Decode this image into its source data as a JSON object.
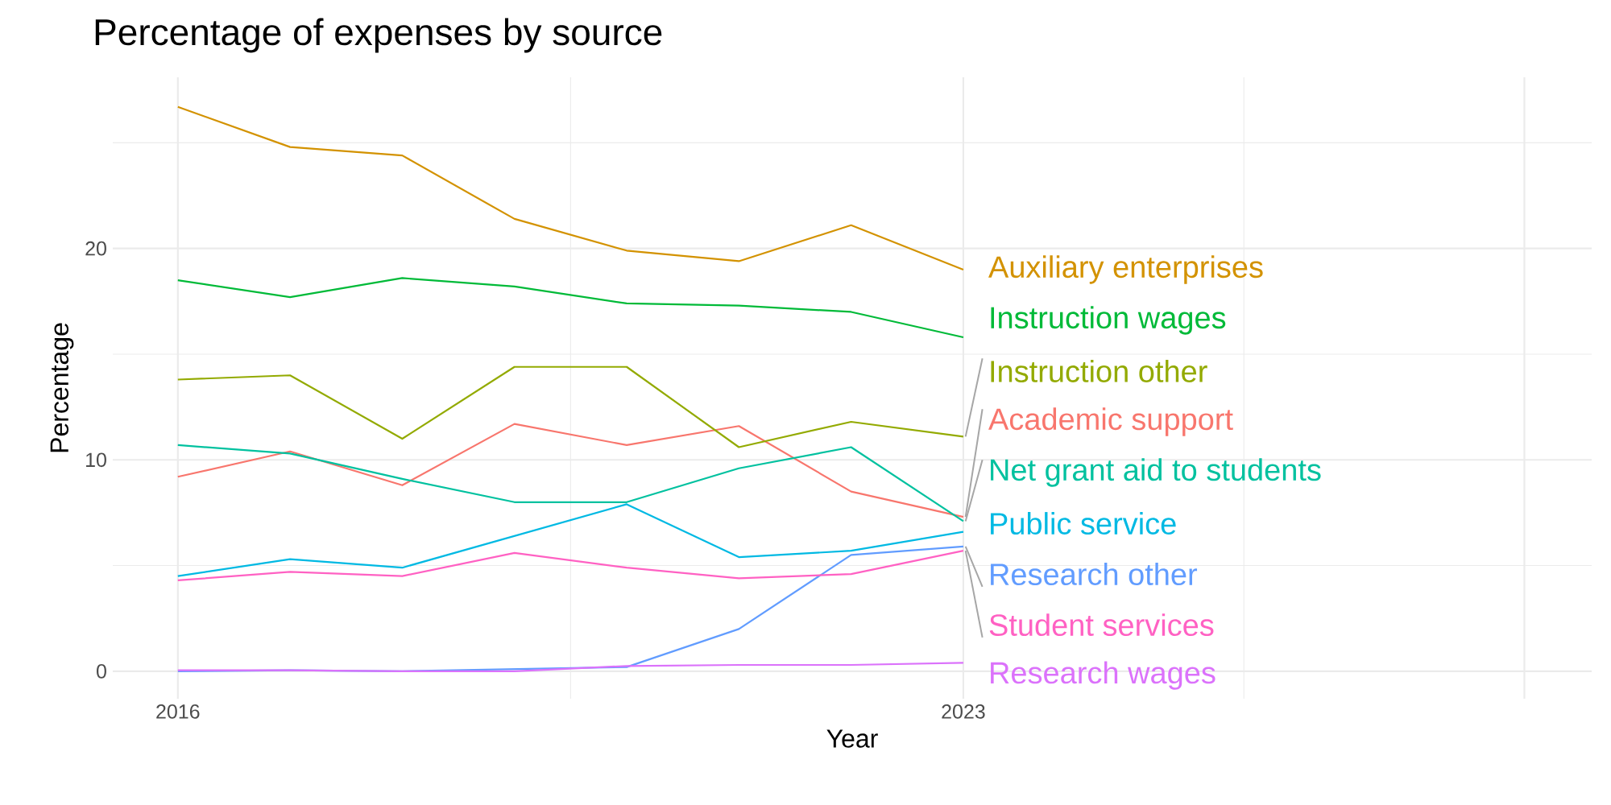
{
  "chart_data": {
    "type": "line",
    "title": "Percentage of expenses by source",
    "xlabel": "Year",
    "ylabel": "Percentage",
    "x": [
      2016,
      2017,
      2018,
      2019,
      2020,
      2021,
      2022,
      2023
    ],
    "series": [
      {
        "name": "Academic support",
        "color": "#f8766d",
        "values": [
          9.2,
          10.4,
          8.8,
          11.7,
          10.7,
          11.6,
          8.5,
          7.3
        ]
      },
      {
        "name": "Auxiliary enterprises",
        "color": "#d39200",
        "values": [
          26.7,
          24.8,
          24.4,
          21.4,
          19.9,
          19.4,
          21.1,
          19.0
        ]
      },
      {
        "name": "Instruction other",
        "color": "#93aa00",
        "values": [
          13.8,
          14.0,
          11.0,
          14.4,
          14.4,
          10.6,
          11.8,
          11.1
        ]
      },
      {
        "name": "Instruction wages",
        "color": "#00ba38",
        "values": [
          18.5,
          17.7,
          18.6,
          18.2,
          17.4,
          17.3,
          17.0,
          15.8
        ]
      },
      {
        "name": "Net grant aid to students",
        "color": "#00c19f",
        "values": [
          10.7,
          10.3,
          9.1,
          8.0,
          8.0,
          9.6,
          10.6,
          7.1
        ]
      },
      {
        "name": "Public service",
        "color": "#00b9e3",
        "values": [
          4.5,
          5.3,
          4.9,
          6.4,
          7.9,
          5.4,
          5.7,
          6.6
        ]
      },
      {
        "name": "Research other",
        "color": "#619cff",
        "values": [
          0.0,
          0.05,
          0.0,
          0.1,
          0.2,
          2.0,
          5.5,
          5.9
        ]
      },
      {
        "name": "Research wages",
        "color": "#db72fb",
        "values": [
          0.05,
          0.05,
          0.0,
          0.0,
          0.25,
          0.3,
          0.3,
          0.4
        ]
      },
      {
        "name": "Student services",
        "color": "#ff61c3",
        "values": [
          4.3,
          4.7,
          4.5,
          5.6,
          4.9,
          4.4,
          4.6,
          5.7
        ]
      }
    ],
    "xlim": [
      2015.42,
      2028.6
    ],
    "ylim": [
      -1.3,
      28.1
    ],
    "xticks": [
      2016,
      2023,
      {
        "value": 2028,
        "label": null
      }
    ],
    "yticks": [
      0,
      10,
      20
    ],
    "grid": true,
    "legend": false
  }
}
